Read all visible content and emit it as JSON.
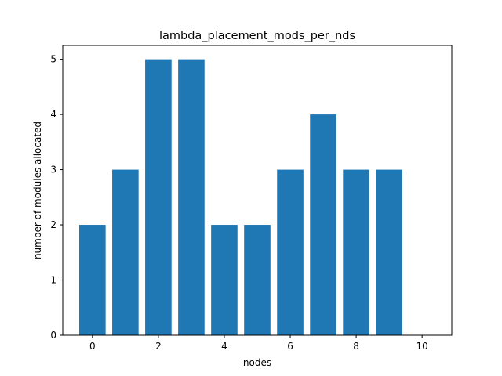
{
  "chart_data": {
    "type": "bar",
    "title": "lambda_placement_mods_per_nds",
    "xlabel": "nodes",
    "ylabel": "number of modules allocated",
    "categories": [
      0,
      1,
      2,
      3,
      4,
      5,
      6,
      7,
      8,
      9
    ],
    "values": [
      2,
      3,
      5,
      5,
      2,
      2,
      3,
      4,
      3,
      3
    ],
    "xlim": [
      -0.9,
      10.9
    ],
    "ylim": [
      0,
      5.25
    ],
    "xticks": [
      0,
      2,
      4,
      6,
      8,
      10
    ],
    "yticks": [
      0,
      1,
      2,
      3,
      4,
      5
    ],
    "bar_color": "#1f77b4",
    "grid": false,
    "legend": "none"
  }
}
